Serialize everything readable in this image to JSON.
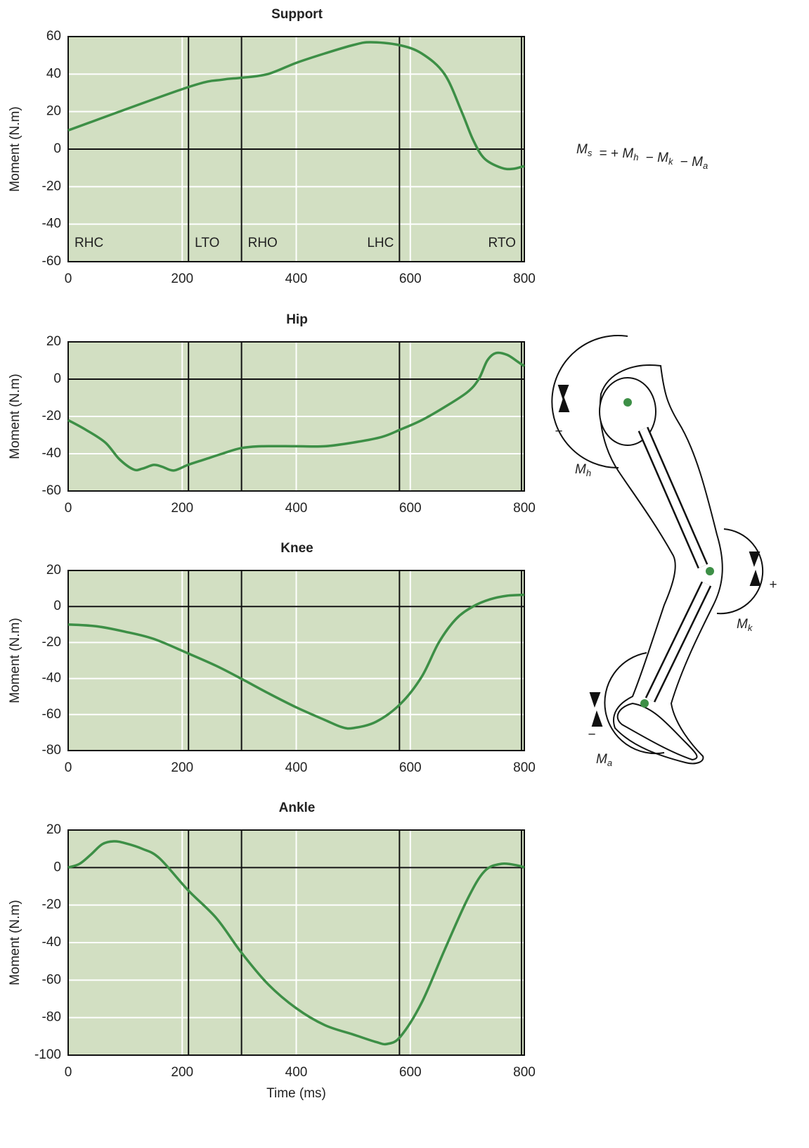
{
  "chart_data": [
    {
      "type": "line",
      "title": "Support",
      "ylabel": "Moment (N.m)",
      "xlim": [
        0,
        800
      ],
      "xticks": [
        0,
        200,
        400,
        600,
        800
      ],
      "ylim": [
        -60,
        60
      ],
      "yticks": [
        -60,
        -40,
        -20,
        0,
        20,
        40,
        60
      ],
      "grid": true,
      "events": [
        0,
        211,
        304,
        581,
        795
      ],
      "event_labels": [
        "RHC",
        "LTO",
        "RHO",
        "LHC",
        "RTO"
      ],
      "x": [
        0,
        210,
        270,
        303,
        350,
        400,
        450,
        500,
        530,
        580,
        620,
        660,
        690,
        710,
        730,
        760,
        780,
        800
      ],
      "series": [
        {
          "color": "#3d8f46",
          "values": [
            10,
            33,
            37,
            38,
            40,
            46,
            51,
            55.5,
            57,
            55.5,
            51,
            40,
            20,
            5,
            -5,
            -10,
            -10.5,
            -9
          ]
        }
      ]
    },
    {
      "type": "line",
      "title": "Hip",
      "ylabel": "Moment (N.m)",
      "xlim": [
        0,
        800
      ],
      "xticks": [
        0,
        200,
        400,
        600,
        800
      ],
      "ylim": [
        -60,
        20
      ],
      "yticks": [
        -60,
        -40,
        -20,
        0,
        20
      ],
      "grid": true,
      "events": [
        211,
        304,
        581,
        795
      ],
      "x": [
        0,
        30,
        65,
        90,
        115,
        130,
        150,
        165,
        185,
        210,
        240,
        270,
        303,
        340,
        400,
        450,
        500,
        550,
        583,
        620,
        660,
        700,
        720,
        735,
        750,
        770,
        790,
        800
      ],
      "series": [
        {
          "color": "#3d8f46",
          "values": [
            -22,
            -27,
            -34,
            -43,
            -48.5,
            -48,
            -46,
            -47,
            -49,
            -46,
            -43,
            -40,
            -37,
            -36,
            -36,
            -36,
            -34,
            -31,
            -27,
            -22,
            -15,
            -7,
            0,
            10,
            14,
            13,
            9,
            7
          ]
        }
      ]
    },
    {
      "type": "line",
      "title": "Knee",
      "ylabel": "Moment (N.m)",
      "xlim": [
        0,
        800
      ],
      "xticks": [
        0,
        200,
        400,
        600,
        800
      ],
      "ylim": [
        -80,
        20
      ],
      "yticks": [
        -80,
        -60,
        -40,
        -20,
        0,
        20
      ],
      "grid": true,
      "events": [
        211,
        304,
        581,
        795
      ],
      "x": [
        0,
        50,
        100,
        150,
        210,
        260,
        303,
        350,
        400,
        450,
        480,
        500,
        540,
        583,
        620,
        650,
        680,
        710,
        740,
        770,
        800
      ],
      "series": [
        {
          "color": "#3d8f46",
          "values": [
            -10,
            -11,
            -14,
            -18,
            -26,
            -33,
            -40,
            -48,
            -56,
            -63,
            -67,
            -67.5,
            -64,
            -54,
            -39,
            -20,
            -7,
            0,
            4,
            6,
            6.5
          ]
        }
      ]
    },
    {
      "type": "line",
      "title": "Ankle",
      "ylabel": "Moment (N.m)",
      "xlabel": "Time (ms)",
      "xlim": [
        0,
        800
      ],
      "xticks": [
        0,
        200,
        400,
        600,
        800
      ],
      "ylim": [
        -100,
        20
      ],
      "yticks": [
        -100,
        -80,
        -60,
        -40,
        -20,
        0,
        20
      ],
      "grid": true,
      "events": [
        211,
        304,
        581,
        795
      ],
      "x": [
        0,
        20,
        40,
        60,
        80,
        100,
        130,
        160,
        210,
        260,
        303,
        350,
        400,
        450,
        500,
        540,
        560,
        583,
        620,
        660,
        700,
        730,
        760,
        790,
        800
      ],
      "series": [
        {
          "color": "#3d8f46",
          "values": [
            0,
            2,
            7,
            12.5,
            14,
            13,
            10,
            5,
            -12,
            -27,
            -45,
            -62,
            -75,
            -84,
            -89,
            -93,
            -94,
            -90,
            -72,
            -44,
            -17,
            -2,
            2,
            1,
            0
          ]
        }
      ]
    }
  ],
  "equation": [
    {
      "symbol": "M",
      "sub": "s"
    },
    "= +",
    {
      "symbol": "M",
      "sub": "h"
    },
    "−",
    {
      "symbol": "M",
      "sub": "k"
    },
    "−",
    {
      "symbol": "M",
      "sub": "a"
    }
  ],
  "diagram": {
    "moment_labels": [
      {
        "symbol": "M",
        "sub": "h"
      },
      {
        "symbol": "M",
        "sub": "k"
      },
      {
        "symbol": "M",
        "sub": "a"
      }
    ],
    "signs": [
      "−",
      "+",
      "−"
    ]
  }
}
